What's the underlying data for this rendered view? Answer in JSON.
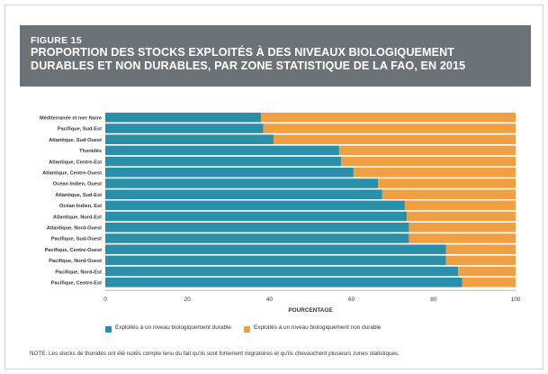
{
  "figure": {
    "label": "FIGURE 15",
    "title": "PROPORTION DES STOCKS EXPLOITÉS À DES NIVEAUX BIOLOGIQUEMENT DURABLES ET NON DURABLES, PAR ZONE STATISTIQUE DE LA FAO, EN 2015",
    "note": "NOTE: Les stocks de thonidés ont été isolés compte tenu du fait qu'ils sont fortement migratoires et qu'ils chevauchent plusieurs zones statistiques."
  },
  "colors": {
    "sustainable": "#2a8fa8",
    "unsustainable": "#f0a040"
  },
  "chart_data": {
    "type": "bar",
    "orientation": "horizontal",
    "stacked": true,
    "categories": [
      "Méditerranée et mer Noire",
      "Pacifique, Sud-Est",
      "Atlantique, Sud-Ouest",
      "Thonidés",
      "Atlantique, Centre-Est",
      "Atlantique, Centre-Ouest",
      "Océan Indien, Ouest",
      "Atlantique, Sud-Est",
      "Océan Indien, Est",
      "Atlantique, Nord-Est",
      "Atlantique, Nord-Ouest",
      "Pacifique, Sud-Ouest",
      "Pacifique, Centre-Ouest",
      "Pacifique, Nord-Ouest",
      "Pacifique, Nord-Est",
      "Pacifique, Centre-Est"
    ],
    "series": [
      {
        "name": "Exploités à un niveau biologiquement durable",
        "values": [
          38,
          38.5,
          41,
          57,
          57.5,
          60.5,
          66.5,
          67.5,
          73,
          73.5,
          74,
          74,
          83,
          83,
          86,
          87
        ]
      },
      {
        "name": "Exploités à un niveau biologiquement non durable",
        "values": [
          62,
          61.5,
          59,
          43,
          42.5,
          39.5,
          33.5,
          32.5,
          27,
          26.5,
          26,
          26,
          17,
          17,
          14,
          13
        ]
      }
    ],
    "xlabel": "POURCENTAGE",
    "xlim": [
      0,
      100
    ],
    "xticks": [
      "0",
      "20",
      "40",
      "60",
      "80",
      "100"
    ],
    "legend_position": "bottom"
  }
}
